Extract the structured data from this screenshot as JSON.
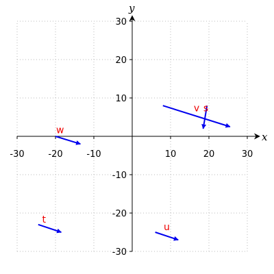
{
  "chart_data": {
    "type": "vector",
    "title": "",
    "xlabel": "x",
    "ylabel": "y",
    "xlim": [
      -30,
      30
    ],
    "ylim": [
      -30,
      30
    ],
    "xticks": [
      -30,
      -20,
      -10,
      10,
      20,
      30
    ],
    "yticks": [
      -30,
      -20,
      -10,
      10,
      20,
      30
    ],
    "grid": true,
    "colors": {
      "vector": "#0000ee",
      "label": "#ee0000",
      "grid": "#b8b8b8",
      "axis": "#000000"
    },
    "vectors": [
      {
        "name": "v",
        "tail": [
          8,
          8
        ],
        "head": [
          25.5,
          2.5
        ],
        "label_at": [
          16.8,
          6.5
        ]
      },
      {
        "name": "s",
        "tail": [
          19.5,
          8
        ],
        "head": [
          18.5,
          2
        ],
        "label_at": [
          19.2,
          6.5
        ]
      },
      {
        "name": "w",
        "tail": [
          -20,
          0
        ],
        "head": [
          -13.5,
          -2
        ],
        "label_at": [
          -18.8,
          0.8
        ]
      },
      {
        "name": "t",
        "tail": [
          -24.5,
          -23
        ],
        "head": [
          -18.5,
          -25
        ],
        "label_at": [
          -23,
          -22.5
        ]
      },
      {
        "name": "u",
        "tail": [
          6,
          -25
        ],
        "head": [
          12,
          -27
        ],
        "label_at": [
          9,
          -24.5
        ]
      }
    ]
  }
}
